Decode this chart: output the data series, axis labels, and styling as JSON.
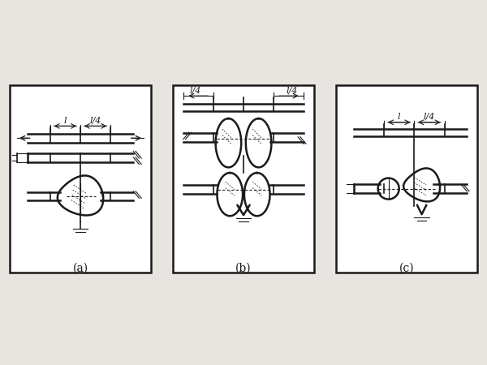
{
  "bg_color": "#e8e5e0",
  "line_color": "#1a1a1a",
  "labels": [
    "(a)",
    "(b)",
    "(c)"
  ],
  "fig_width": 6.0,
  "fig_height": 4.5,
  "dpi": 100
}
